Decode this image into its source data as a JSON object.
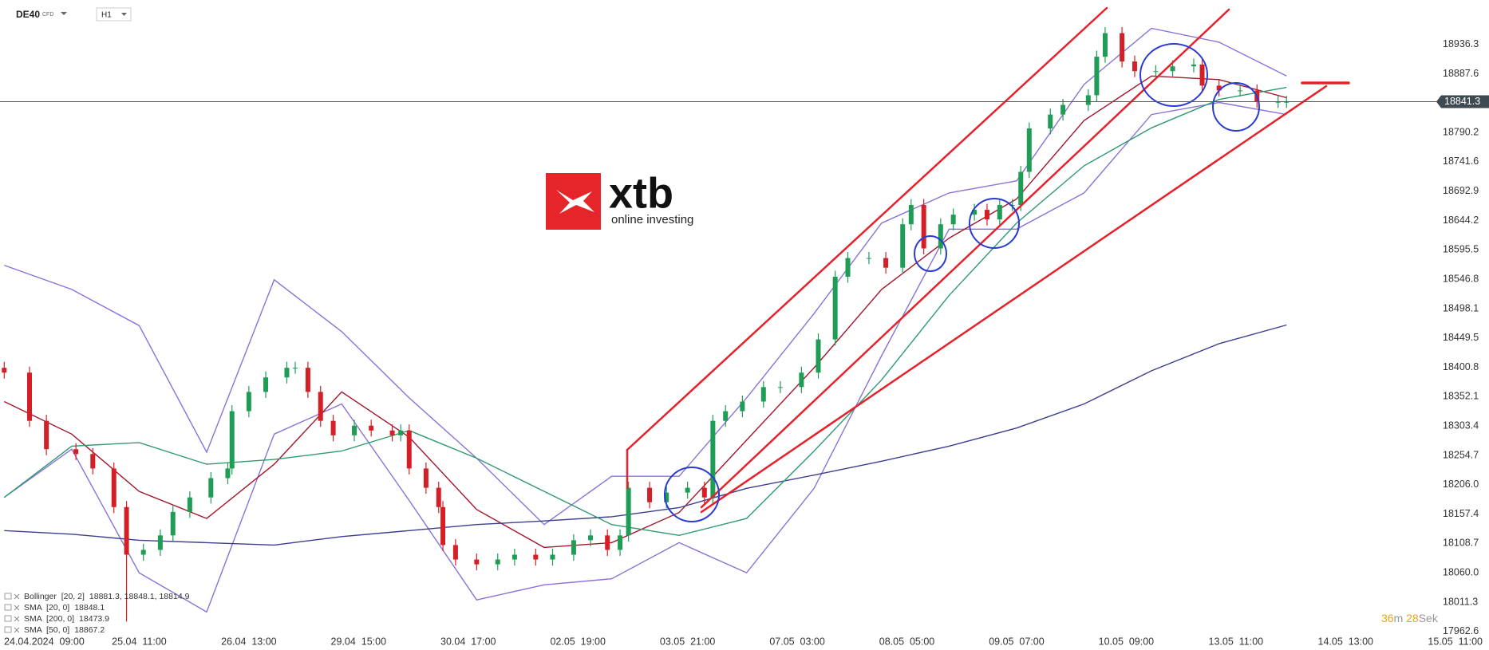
{
  "header": {
    "instrument": "DE40",
    "instrument_type": "CFD",
    "timeframe": "H1"
  },
  "logo": {
    "brand": "xtb",
    "tagline": "online investing"
  },
  "timer": {
    "minutes": 36,
    "minutes_unit": "m",
    "seconds": 28,
    "seconds_unit": "Sek"
  },
  "chart_data": {
    "type": "candlestick",
    "xlim": [
      -1,
      352
    ],
    "ylim": [
      17965,
      19010
    ],
    "xticks": [
      {
        "value": 0,
        "label": "24.04.2024  09:00"
      },
      {
        "value": 32,
        "label": "25.04  11:00"
      },
      {
        "value": 58,
        "label": "26.04  13:00"
      },
      {
        "value": 84,
        "label": "29.04  15:00"
      },
      {
        "value": 110,
        "label": "30.04  17:00"
      },
      {
        "value": 136,
        "label": "02.05  19:00"
      },
      {
        "value": 162,
        "label": "03.05  21:00"
      },
      {
        "value": 188,
        "label": "07.05  03:00"
      },
      {
        "value": 214,
        "label": "08.05  05:00"
      },
      {
        "value": 240,
        "label": "09.05  07:00"
      },
      {
        "value": 266,
        "label": "10.05  09:00"
      },
      {
        "value": 292,
        "label": "13.05  11:00"
      },
      {
        "value": 318,
        "label": "14.05  13:00"
      },
      {
        "value": 344,
        "label": "15.05  11:00"
      }
    ],
    "yticks": [
      18936.3,
      18887.6,
      18790.2,
      18741.6,
      18692.9,
      18644.2,
      18595.5,
      18546.8,
      18498.1,
      18449.5,
      18400.8,
      18352.1,
      18303.4,
      18254.7,
      {
        "value": 18206,
        "label": "18206.0"
      },
      18157.4,
      18108.7,
      {
        "value": 18060,
        "label": "18060.0"
      },
      18011.3,
      17962.6
    ],
    "current_price": 18841.3,
    "candles": {
      "up_color": "#1f9d55",
      "down_color": "#d51f26",
      "x": [
        0,
        6,
        10,
        17,
        21,
        26,
        29,
        33,
        37,
        40,
        44,
        49,
        53,
        54,
        58,
        62,
        67,
        69,
        72,
        75,
        78,
        83,
        87,
        92,
        94,
        96,
        100,
        103,
        104,
        107,
        112,
        117,
        121,
        126,
        130,
        135,
        139,
        143,
        146,
        148,
        153,
        157,
        162,
        166,
        168,
        171,
        175,
        180,
        184,
        189,
        193,
        197,
        200,
        205,
        209,
        213,
        215,
        218,
        222,
        225,
        230,
        233,
        236,
        239,
        241,
        243,
        248,
        251,
        257,
        259,
        261,
        265,
        268,
        273,
        277,
        282,
        284,
        288,
        293,
        297,
        302,
        304
      ],
      "open": [
        18400,
        18392,
        18312,
        18265,
        18257,
        18233,
        18169,
        18090,
        18098,
        18122,
        18161,
        18185,
        18217,
        18233,
        18328,
        18360,
        18384,
        18400,
        18400,
        18360,
        18312,
        18288,
        18304,
        18296,
        18288,
        18296,
        18233,
        18201,
        18169,
        18106,
        18082,
        18074,
        18082,
        18090,
        18082,
        18090,
        18114,
        18122,
        18098,
        18122,
        18201,
        18177,
        18193,
        18201,
        18185,
        18312,
        18328,
        18344,
        18368,
        18368,
        18392,
        18447,
        18551,
        18582,
        18582,
        18566,
        18638,
        18670,
        18598,
        18638,
        18654,
        18662,
        18646,
        18670,
        18670,
        18725,
        18797,
        18820,
        18836,
        18852,
        18916,
        18955,
        18908,
        18892,
        18892,
        18900,
        18903,
        18868,
        18860,
        18860,
        18841,
        18841
      ],
      "high": [
        18410,
        18402,
        18322,
        18275,
        18267,
        18243,
        18179,
        18108,
        18132,
        18171,
        18195,
        18227,
        18243,
        18338,
        18370,
        18394,
        18410,
        18410,
        18410,
        18370,
        18322,
        18314,
        18314,
        18306,
        18306,
        18306,
        18243,
        18211,
        18179,
        18116,
        18092,
        18092,
        18100,
        18100,
        18100,
        18124,
        18132,
        18132,
        18132,
        18211,
        18211,
        18203,
        18211,
        18211,
        18322,
        18338,
        18354,
        18378,
        18378,
        18402,
        18457,
        18561,
        18592,
        18592,
        18592,
        18648,
        18680,
        18680,
        18648,
        18664,
        18672,
        18672,
        18680,
        18680,
        18735,
        18807,
        18830,
        18846,
        18862,
        18926,
        18965,
        18965,
        18918,
        18902,
        18910,
        18913,
        18913,
        18878,
        18870,
        18870,
        18851,
        18851
      ],
      "low": [
        18382,
        18302,
        18255,
        18247,
        18223,
        18159,
        17979,
        18080,
        18088,
        18112,
        18151,
        18175,
        18207,
        18223,
        18318,
        18350,
        18374,
        18390,
        18350,
        18302,
        18278,
        18278,
        18286,
        18278,
        18278,
        18223,
        18191,
        18159,
        18096,
        18072,
        18064,
        18064,
        18072,
        18072,
        18072,
        18080,
        18104,
        18088,
        18088,
        18112,
        18167,
        18167,
        18183,
        18175,
        18175,
        18302,
        18318,
        18334,
        18358,
        18358,
        18382,
        18437,
        18541,
        18572,
        18556,
        18556,
        18628,
        18588,
        18588,
        18628,
        18644,
        18636,
        18636,
        18660,
        18660,
        18715,
        18787,
        18810,
        18826,
        18842,
        18906,
        18898,
        18882,
        18882,
        18882,
        18890,
        18858,
        18850,
        18850,
        18831,
        18831,
        18831
      ],
      "close": [
        18392,
        18312,
        18265,
        18257,
        18233,
        18169,
        18090,
        18098,
        18122,
        18161,
        18185,
        18217,
        18233,
        18328,
        18360,
        18384,
        18400,
        18400,
        18360,
        18312,
        18288,
        18304,
        18296,
        18288,
        18296,
        18233,
        18201,
        18169,
        18106,
        18082,
        18074,
        18082,
        18090,
        18082,
        18090,
        18114,
        18122,
        18098,
        18122,
        18201,
        18177,
        18193,
        18201,
        18185,
        18312,
        18328,
        18344,
        18368,
        18368,
        18392,
        18447,
        18551,
        18582,
        18582,
        18566,
        18638,
        18670,
        18598,
        18638,
        18654,
        18662,
        18646,
        18670,
        18670,
        18725,
        18797,
        18820,
        18836,
        18852,
        18916,
        18955,
        18908,
        18892,
        18892,
        18900,
        18903,
        18868,
        18860,
        18860,
        18841,
        18841,
        18841
      ]
    },
    "indicator_x": [
      0,
      16,
      32,
      48,
      64,
      80,
      96,
      112,
      128,
      144,
      160,
      176,
      192,
      208,
      224,
      240,
      256,
      272,
      288,
      304
    ],
    "series": [
      {
        "name": "Bollinger  [20, 2]",
        "legend_text": "18881.3, 18848.1, 18814.9",
        "color": "#8b72d8",
        "upper": [
          18570,
          18530,
          18470,
          18260,
          18546,
          18460,
          18350,
          18250,
          18140,
          18220,
          18220,
          18350,
          18490,
          18640,
          18690,
          18710,
          18870,
          18963,
          18940,
          18884
        ],
        "lower": [
          18185,
          18265,
          18060,
          17995,
          18290,
          18340,
          18180,
          18015,
          18040,
          18050,
          18110,
          18060,
          18200,
          18420,
          18630,
          18630,
          18690,
          18820,
          18840,
          18820
        ]
      },
      {
        "name": "SMA  [20, 0]",
        "legend_text": "18848.1",
        "color": "#a3162b",
        "values": [
          18344,
          18290,
          18195,
          18150,
          18240,
          18360,
          18285,
          18165,
          18102,
          18110,
          18160,
          18280,
          18400,
          18530,
          18615,
          18680,
          18810,
          18884,
          18878,
          18848
        ]
      },
      {
        "name": "SMA  [200, 0]",
        "legend_text": "18473.9",
        "color": "#3b3f8f",
        "values": [
          18130,
          18124,
          18114,
          18110,
          18106,
          18120,
          18130,
          18140,
          18146,
          18153,
          18168,
          18200,
          18222,
          18245,
          18270,
          18300,
          18340,
          18395,
          18440,
          18471
        ]
      },
      {
        "name": "SMA  [50, 0]",
        "legend_text": "18867.2",
        "color": "#2e9a6e",
        "values": [
          18185,
          18270,
          18276,
          18240,
          18248,
          18262,
          18296,
          18250,
          18195,
          18140,
          18122,
          18150,
          18262,
          18380,
          18520,
          18640,
          18735,
          18798,
          18845,
          18865
        ]
      }
    ]
  }
}
